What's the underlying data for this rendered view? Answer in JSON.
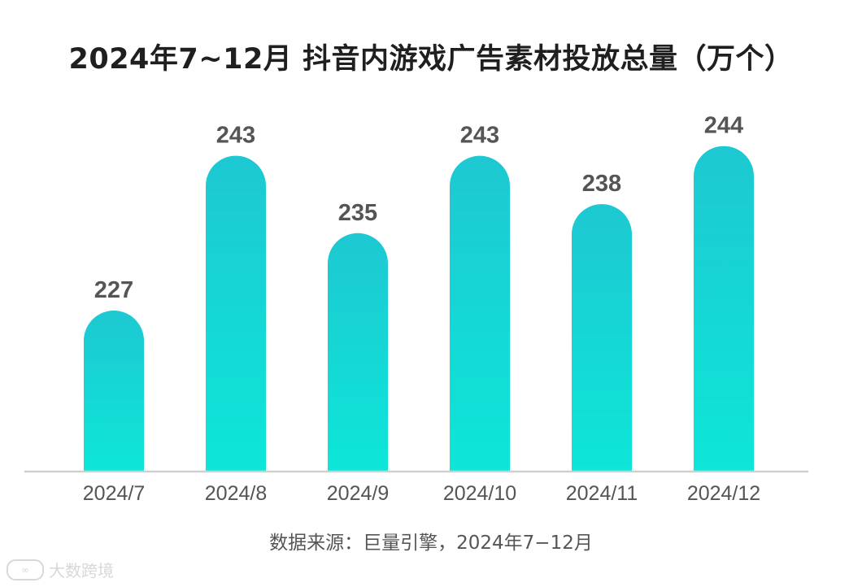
{
  "title": "2024年7~12月 抖音内游戏广告素材投放总量（万个）",
  "source": "数据来源：巨量引擎，2024年7−12月",
  "watermark": "大数跨境",
  "colors": {
    "bar_top": "#1dc8d2",
    "bar_bottom": "#0de6d8",
    "axis": "#cfcfcf",
    "label": "#555555"
  },
  "chart_data": {
    "type": "bar",
    "title": "2024年7~12月 抖音内游戏广告素材投放总量（万个）",
    "categories": [
      "2024/7",
      "2024/8",
      "2024/9",
      "2024/10",
      "2024/11",
      "2024/12"
    ],
    "values": [
      227,
      243,
      235,
      243,
      238,
      244
    ],
    "xlabel": "",
    "ylabel": "",
    "grid": false,
    "legend": "none"
  }
}
